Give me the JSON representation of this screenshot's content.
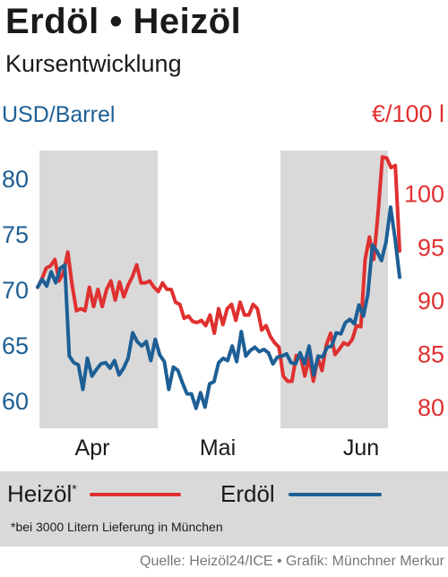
{
  "header": {
    "title": "Erdöl • Heizöl",
    "subtitle": "Kursentwicklung"
  },
  "axes": {
    "left_unit": "USD/Barrel",
    "right_unit": "€/100 l",
    "left_ticks": [
      "80",
      "75",
      "70",
      "65",
      "60"
    ],
    "right_ticks": [
      "100",
      "95",
      "90",
      "85",
      "80"
    ],
    "x_ticks": [
      "Apr",
      "Mai",
      "Jun"
    ]
  },
  "legend": {
    "heizoel_label": "Heizöl",
    "heizoel_marker": "*",
    "erdoel_label": "Erdöl",
    "footnote": "*bei 3000 Litern Lieferung in München"
  },
  "source": "Quelle: Heizöl24/ICE • Grafik: Münchner Merkur",
  "colors": {
    "heizoel": "#e03030",
    "erdoel": "#1d5f95",
    "shade": "#d9d9d9"
  },
  "chart_data": {
    "type": "line",
    "title": "Erdöl • Heizöl",
    "subtitle": "Kursentwicklung",
    "x_labels": [
      "Apr",
      "Mai",
      "Jun"
    ],
    "shaded_months": [
      "Apr",
      "Jun"
    ],
    "left_axis": {
      "label": "USD/Barrel",
      "ylim": [
        57.5,
        82.5
      ],
      "ticks": [
        60,
        65,
        70,
        75,
        80
      ]
    },
    "right_axis": {
      "label": "€/100 l",
      "ylim": [
        78,
        104
      ],
      "ticks": [
        80,
        85,
        90,
        95,
        100
      ]
    },
    "series": [
      {
        "name": "Heizöl",
        "axis": "right",
        "values": [
          91.2,
          92.0,
          93.0,
          93.2,
          93.8,
          91.8,
          92.6,
          94.5,
          91.4,
          89.0,
          89.2,
          89.0,
          91.2,
          89.4,
          91.0,
          89.4,
          91.0,
          91.8,
          90.0,
          91.7,
          90.3,
          91.4,
          92.2,
          93.3,
          91.6,
          91.6,
          91.8,
          91.2,
          90.8,
          91.6,
          91.0,
          91.0,
          89.8,
          89.6,
          88.3,
          88.5,
          88.0,
          87.9,
          88.1,
          87.6,
          88.6,
          86.9,
          89.2,
          87.7,
          89.2,
          89.6,
          88.1,
          89.8,
          88.6,
          88.6,
          89.6,
          89.2,
          87.2,
          87.6,
          86.6,
          86.0,
          85.6,
          82.9,
          82.4,
          82.4,
          84.8,
          84.8,
          82.9,
          84.6,
          82.4,
          84.6,
          83.4,
          85.8,
          86.9,
          84.9,
          85.4,
          86.0,
          85.8,
          86.3,
          87.6,
          87.5,
          93.8,
          95.9,
          93.8,
          98.2,
          103.4,
          103.3,
          102.4,
          102.6,
          94.6
        ]
      },
      {
        "name": "Erdöl",
        "axis": "left",
        "values": [
          70.2,
          70.9,
          70.3,
          71.6,
          70.6,
          71.9,
          72.2,
          64.0,
          63.4,
          63.2,
          61.0,
          63.8,
          62.2,
          62.8,
          63.3,
          63.4,
          62.9,
          63.6,
          62.3,
          62.9,
          63.8,
          66.1,
          65.3,
          64.9,
          65.3,
          63.6,
          65.5,
          64.1,
          63.5,
          61.0,
          63.0,
          62.7,
          61.6,
          60.6,
          60.6,
          59.3,
          60.7,
          59.4,
          61.5,
          61.7,
          63.4,
          63.8,
          63.6,
          64.9,
          63.5,
          66.2,
          64.0,
          64.5,
          64.8,
          64.4,
          64.6,
          64.3,
          63.3,
          63.9,
          64.0,
          64.2,
          63.4,
          63.3,
          64.3,
          63.3,
          64.9,
          62.3,
          64.0,
          63.9,
          64.8,
          64.9,
          66.1,
          66.0,
          67.0,
          67.3,
          66.9,
          68.6,
          67.6,
          69.6,
          74.0,
          73.4,
          72.6,
          74.3,
          77.4,
          74.6,
          71.1
        ]
      }
    ],
    "grid": false,
    "legend_position": "bottom"
  }
}
